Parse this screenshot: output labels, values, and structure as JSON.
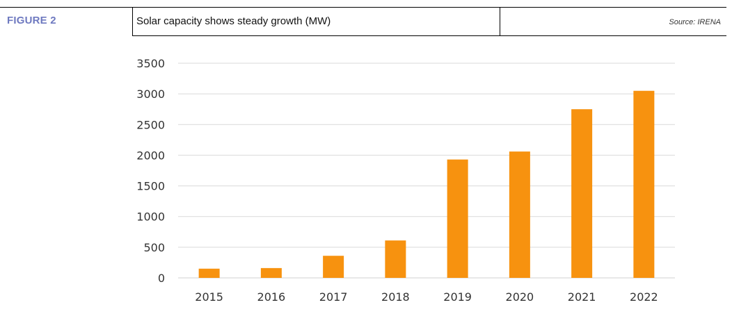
{
  "header": {
    "figure_label": "FIGURE 2",
    "title": "Solar capacity shows steady growth (MW)",
    "source": "Source: IRENA"
  },
  "colors": {
    "bar": "#f7920f",
    "grid": "#d9d9d9",
    "figure_label": "#6e79c0"
  },
  "chart_data": {
    "type": "bar",
    "title": "Solar capacity shows steady growth (MW)",
    "xlabel": "",
    "ylabel": "",
    "categories": [
      "2015",
      "2016",
      "2017",
      "2018",
      "2019",
      "2020",
      "2021",
      "2022"
    ],
    "values": [
      150,
      160,
      360,
      610,
      1930,
      2060,
      2750,
      3050
    ],
    "ylim": [
      0,
      3500
    ],
    "yticks": [
      0,
      500,
      1000,
      1500,
      2000,
      2500,
      3000,
      3500
    ],
    "grid": true,
    "legend": "none"
  }
}
